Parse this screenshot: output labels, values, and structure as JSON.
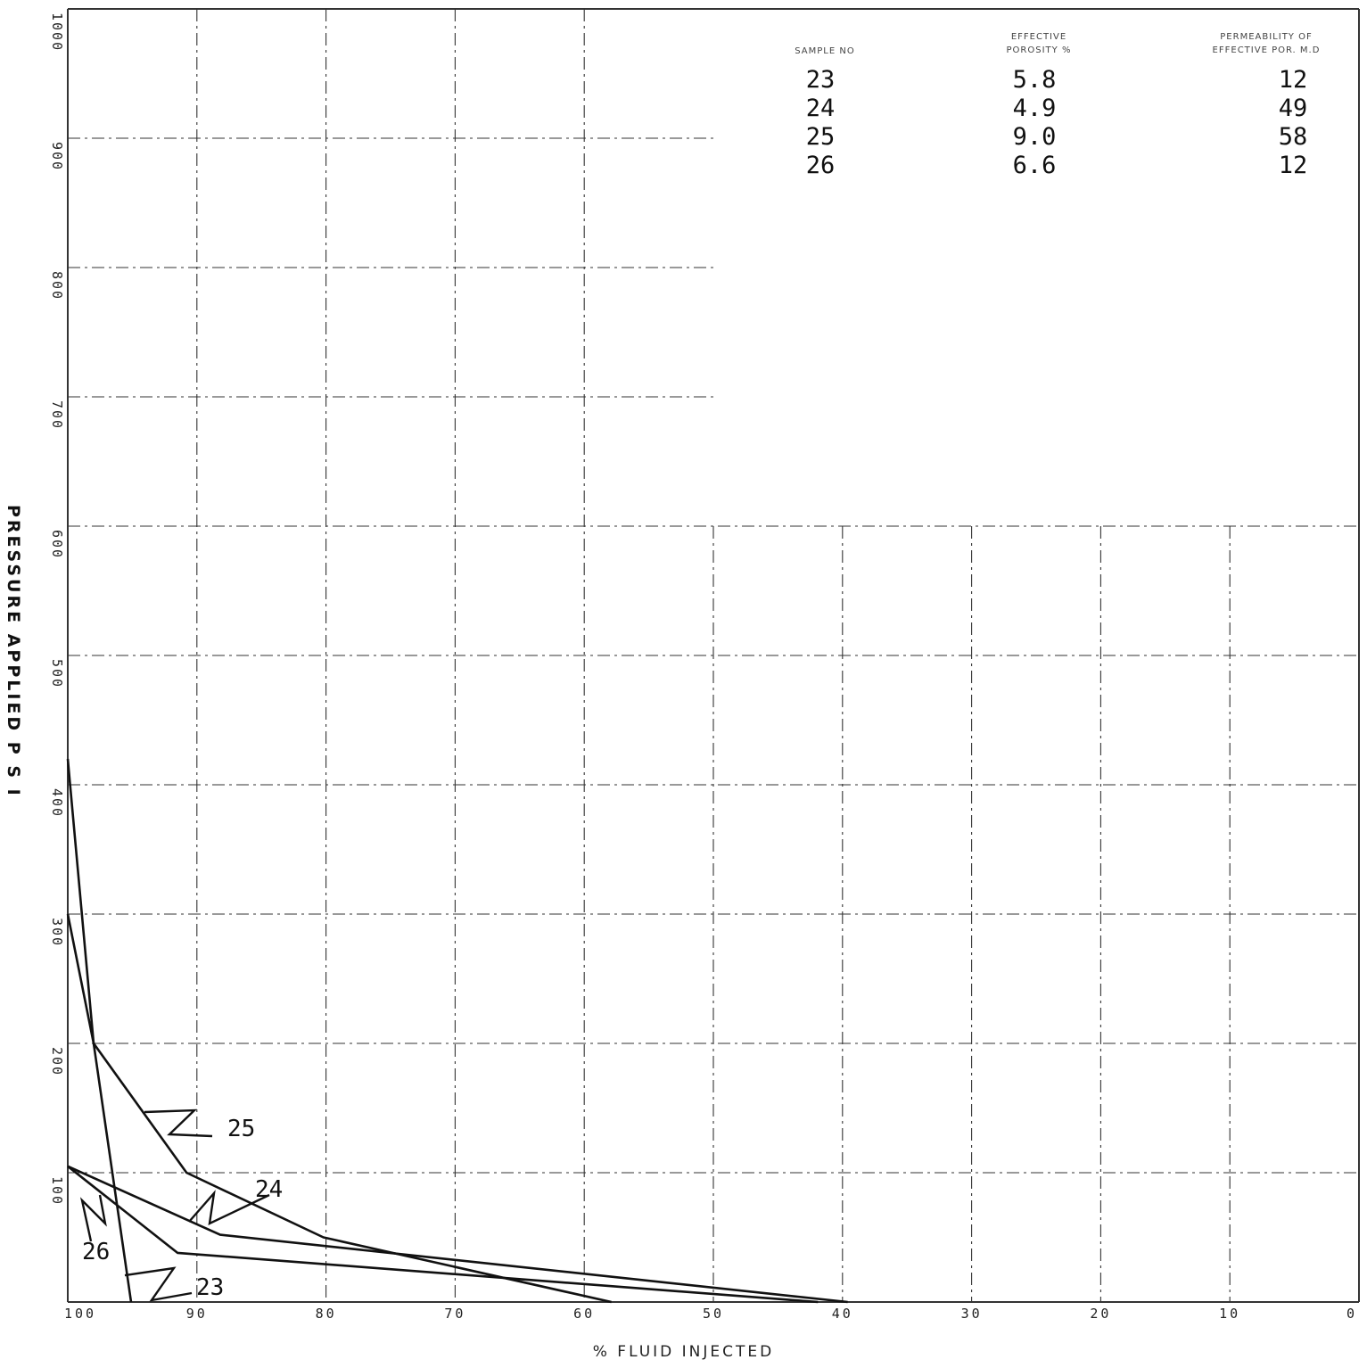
{
  "chart_data": {
    "type": "line",
    "title": "",
    "xlabel": "% FLUID INJECTED",
    "ylabel": "PRESSURE APPLIED P S I",
    "xlim": [
      100,
      0
    ],
    "ylim": [
      0,
      1000
    ],
    "x_ticks": [
      "100",
      "90",
      "80",
      "70",
      "60",
      "50",
      "40",
      "30",
      "20",
      "10",
      "0"
    ],
    "y_ticks": [
      "1000",
      "900",
      "800",
      "700",
      "600",
      "500",
      "400",
      "300",
      "200",
      "100"
    ],
    "grid": true,
    "series": [
      {
        "name": "23",
        "x": [
          100,
          98,
          95.1
        ],
        "y": [
          420,
          200,
          0
        ]
      },
      {
        "name": "24",
        "x": [
          100,
          88.2,
          39.6
        ],
        "y": [
          105,
          52,
          0
        ]
      },
      {
        "name": "25",
        "x": [
          100,
          98,
          90.8,
          80.2,
          57.9
        ],
        "y": [
          300,
          200,
          100,
          50,
          0
        ]
      },
      {
        "name": "26",
        "x": [
          100,
          91.5,
          41.9
        ],
        "y": [
          105,
          38,
          0
        ]
      }
    ],
    "table": {
      "headers": [
        [
          "SAMPLE NO"
        ],
        [
          "EFFECTIVE",
          "POROSITY %"
        ],
        [
          "PERMEABILITY OF",
          "EFFECTIVE POR. M.D"
        ]
      ],
      "rows": [
        [
          "23",
          "5.8",
          "12"
        ],
        [
          "24",
          "4.9",
          "49"
        ],
        [
          "25",
          "9.0",
          "58"
        ],
        [
          "26",
          "6.6",
          "12"
        ]
      ]
    }
  }
}
